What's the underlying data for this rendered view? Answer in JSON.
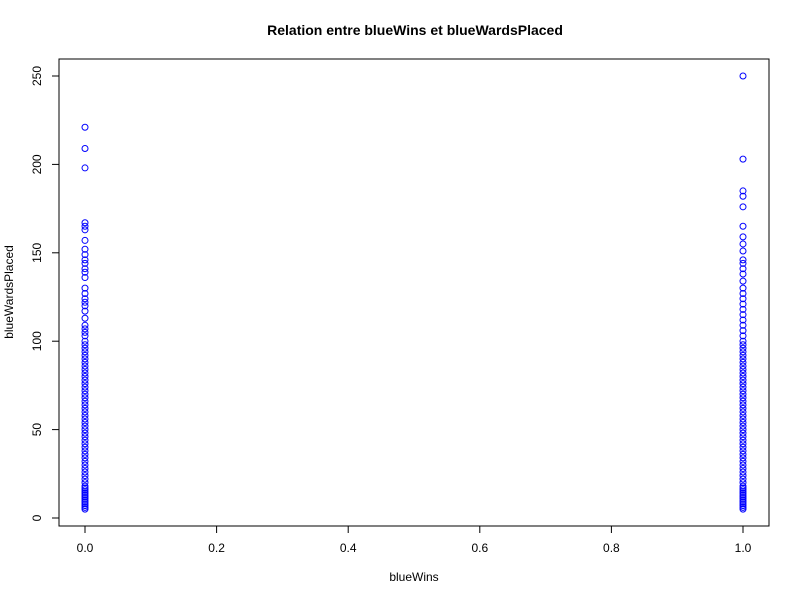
{
  "chart_data": {
    "type": "scatter",
    "title": "Relation entre blueWins et blueWardsPlaced",
    "xlabel": "blueWins",
    "ylabel": "blueWardsPlaced",
    "xlim": [
      0,
      1
    ],
    "ylim": [
      0,
      250
    ],
    "x_ticks": [
      0.0,
      0.2,
      0.4,
      0.6,
      0.8,
      1.0
    ],
    "x_tick_labels": [
      "0.0",
      "0.2",
      "0.4",
      "0.6",
      "0.8",
      "1.0"
    ],
    "y_ticks": [
      0,
      50,
      100,
      150,
      200,
      250
    ],
    "y_tick_labels": [
      "0",
      "50",
      "100",
      "150",
      "200",
      "250"
    ],
    "point_color": "#0000ff",
    "grid": false,
    "series": [
      {
        "x": 0,
        "y": [
          221,
          209,
          198,
          167,
          165,
          163,
          157,
          152,
          149,
          146,
          144,
          141,
          139,
          136,
          130,
          127,
          124,
          122,
          120,
          117,
          113,
          109,
          107,
          105,
          103,
          100,
          98,
          96,
          94,
          92,
          90,
          88,
          86,
          84,
          82,
          80,
          78,
          76,
          74,
          72,
          70,
          68,
          66,
          64,
          62,
          60,
          58,
          56,
          54,
          52,
          50,
          48,
          46,
          44,
          42,
          40,
          38,
          36,
          34,
          32,
          30,
          28,
          26,
          24,
          22,
          20,
          18,
          17,
          16,
          15,
          14,
          13,
          12,
          11,
          10,
          9,
          8,
          7,
          6,
          5
        ]
      },
      {
        "x": 1,
        "y": [
          250,
          203,
          185,
          182,
          176,
          165,
          159,
          155,
          151,
          146,
          144,
          141,
          138,
          134,
          130,
          127,
          124,
          121,
          118,
          115,
          112,
          109,
          106,
          103,
          100,
          98,
          96,
          94,
          92,
          90,
          88,
          86,
          84,
          82,
          80,
          78,
          76,
          74,
          72,
          70,
          68,
          66,
          64,
          62,
          60,
          58,
          56,
          54,
          52,
          50,
          48,
          46,
          44,
          42,
          40,
          38,
          36,
          34,
          32,
          30,
          28,
          26,
          24,
          22,
          20,
          18,
          17,
          16,
          15,
          14,
          13,
          12,
          11,
          10,
          9,
          8,
          7,
          6,
          5
        ]
      }
    ]
  }
}
